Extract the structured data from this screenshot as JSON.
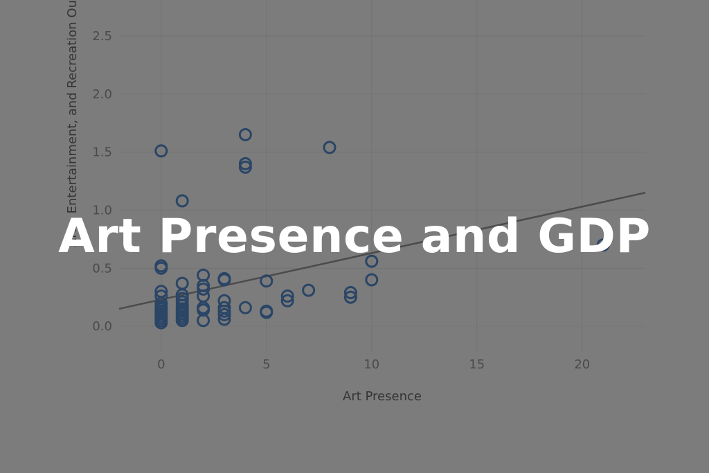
{
  "overlay": {
    "title": "Art Presence and GDP"
  },
  "colors": {
    "background": "#7c7c7c",
    "grid": "#727272",
    "marker": "#2a4566",
    "trendline": "#4b4b4b",
    "text": "#4a4a4a"
  },
  "chart_data": {
    "type": "scatter",
    "xlabel": "Art Presence",
    "ylabel": "Arts, Entertainment, and Recreation Ou",
    "xlim": [
      -2,
      23
    ],
    "ylim": [
      -0.22,
      2.75
    ],
    "x_ticks": [
      0,
      5,
      10,
      15,
      20
    ],
    "y_ticks": [
      0.0,
      0.5,
      1.0,
      1.5,
      2.0,
      2.5
    ],
    "x_tick_labels": [
      "0",
      "5",
      "10",
      "15",
      "20"
    ],
    "y_tick_labels": [
      "0.0",
      "0.5",
      "1.0",
      "1.5",
      "2.0",
      "2.5"
    ],
    "grid": true,
    "marker": "hollow-circle",
    "points": [
      [
        0,
        1.51
      ],
      [
        0,
        0.52
      ],
      [
        0,
        0.5
      ],
      [
        0,
        0.3
      ],
      [
        0,
        0.26
      ],
      [
        0,
        0.2
      ],
      [
        0,
        0.17
      ],
      [
        0,
        0.15
      ],
      [
        0,
        0.13
      ],
      [
        0,
        0.11
      ],
      [
        0,
        0.09
      ],
      [
        0,
        0.07
      ],
      [
        0,
        0.05
      ],
      [
        0,
        0.03
      ],
      [
        1,
        1.08
      ],
      [
        1,
        0.37
      ],
      [
        1,
        0.27
      ],
      [
        1,
        0.24
      ],
      [
        1,
        0.21
      ],
      [
        1,
        0.18
      ],
      [
        1,
        0.15
      ],
      [
        1,
        0.13
      ],
      [
        1,
        0.11
      ],
      [
        1,
        0.09
      ],
      [
        1,
        0.07
      ],
      [
        1,
        0.05
      ],
      [
        2,
        0.44
      ],
      [
        2,
        0.35
      ],
      [
        2,
        0.32
      ],
      [
        2,
        0.26
      ],
      [
        2,
        0.16
      ],
      [
        2,
        0.14
      ],
      [
        2,
        0.05
      ],
      [
        3,
        0.41
      ],
      [
        3,
        0.4
      ],
      [
        3,
        0.22
      ],
      [
        3,
        0.16
      ],
      [
        3,
        0.13
      ],
      [
        3,
        0.1
      ],
      [
        3,
        0.06
      ],
      [
        4,
        1.65
      ],
      [
        4,
        1.4
      ],
      [
        4,
        1.37
      ],
      [
        4,
        0.16
      ],
      [
        5,
        0.39
      ],
      [
        5,
        0.13
      ],
      [
        5,
        0.12
      ],
      [
        6,
        0.26
      ],
      [
        6,
        0.22
      ],
      [
        7,
        0.31
      ],
      [
        8,
        1.54
      ],
      [
        9,
        0.29
      ],
      [
        9,
        0.25
      ],
      [
        10,
        0.56
      ],
      [
        10,
        0.4
      ],
      [
        21,
        0.7
      ]
    ],
    "trendline": {
      "x": [
        -2,
        23
      ],
      "y": [
        0.15,
        1.15
      ]
    }
  }
}
